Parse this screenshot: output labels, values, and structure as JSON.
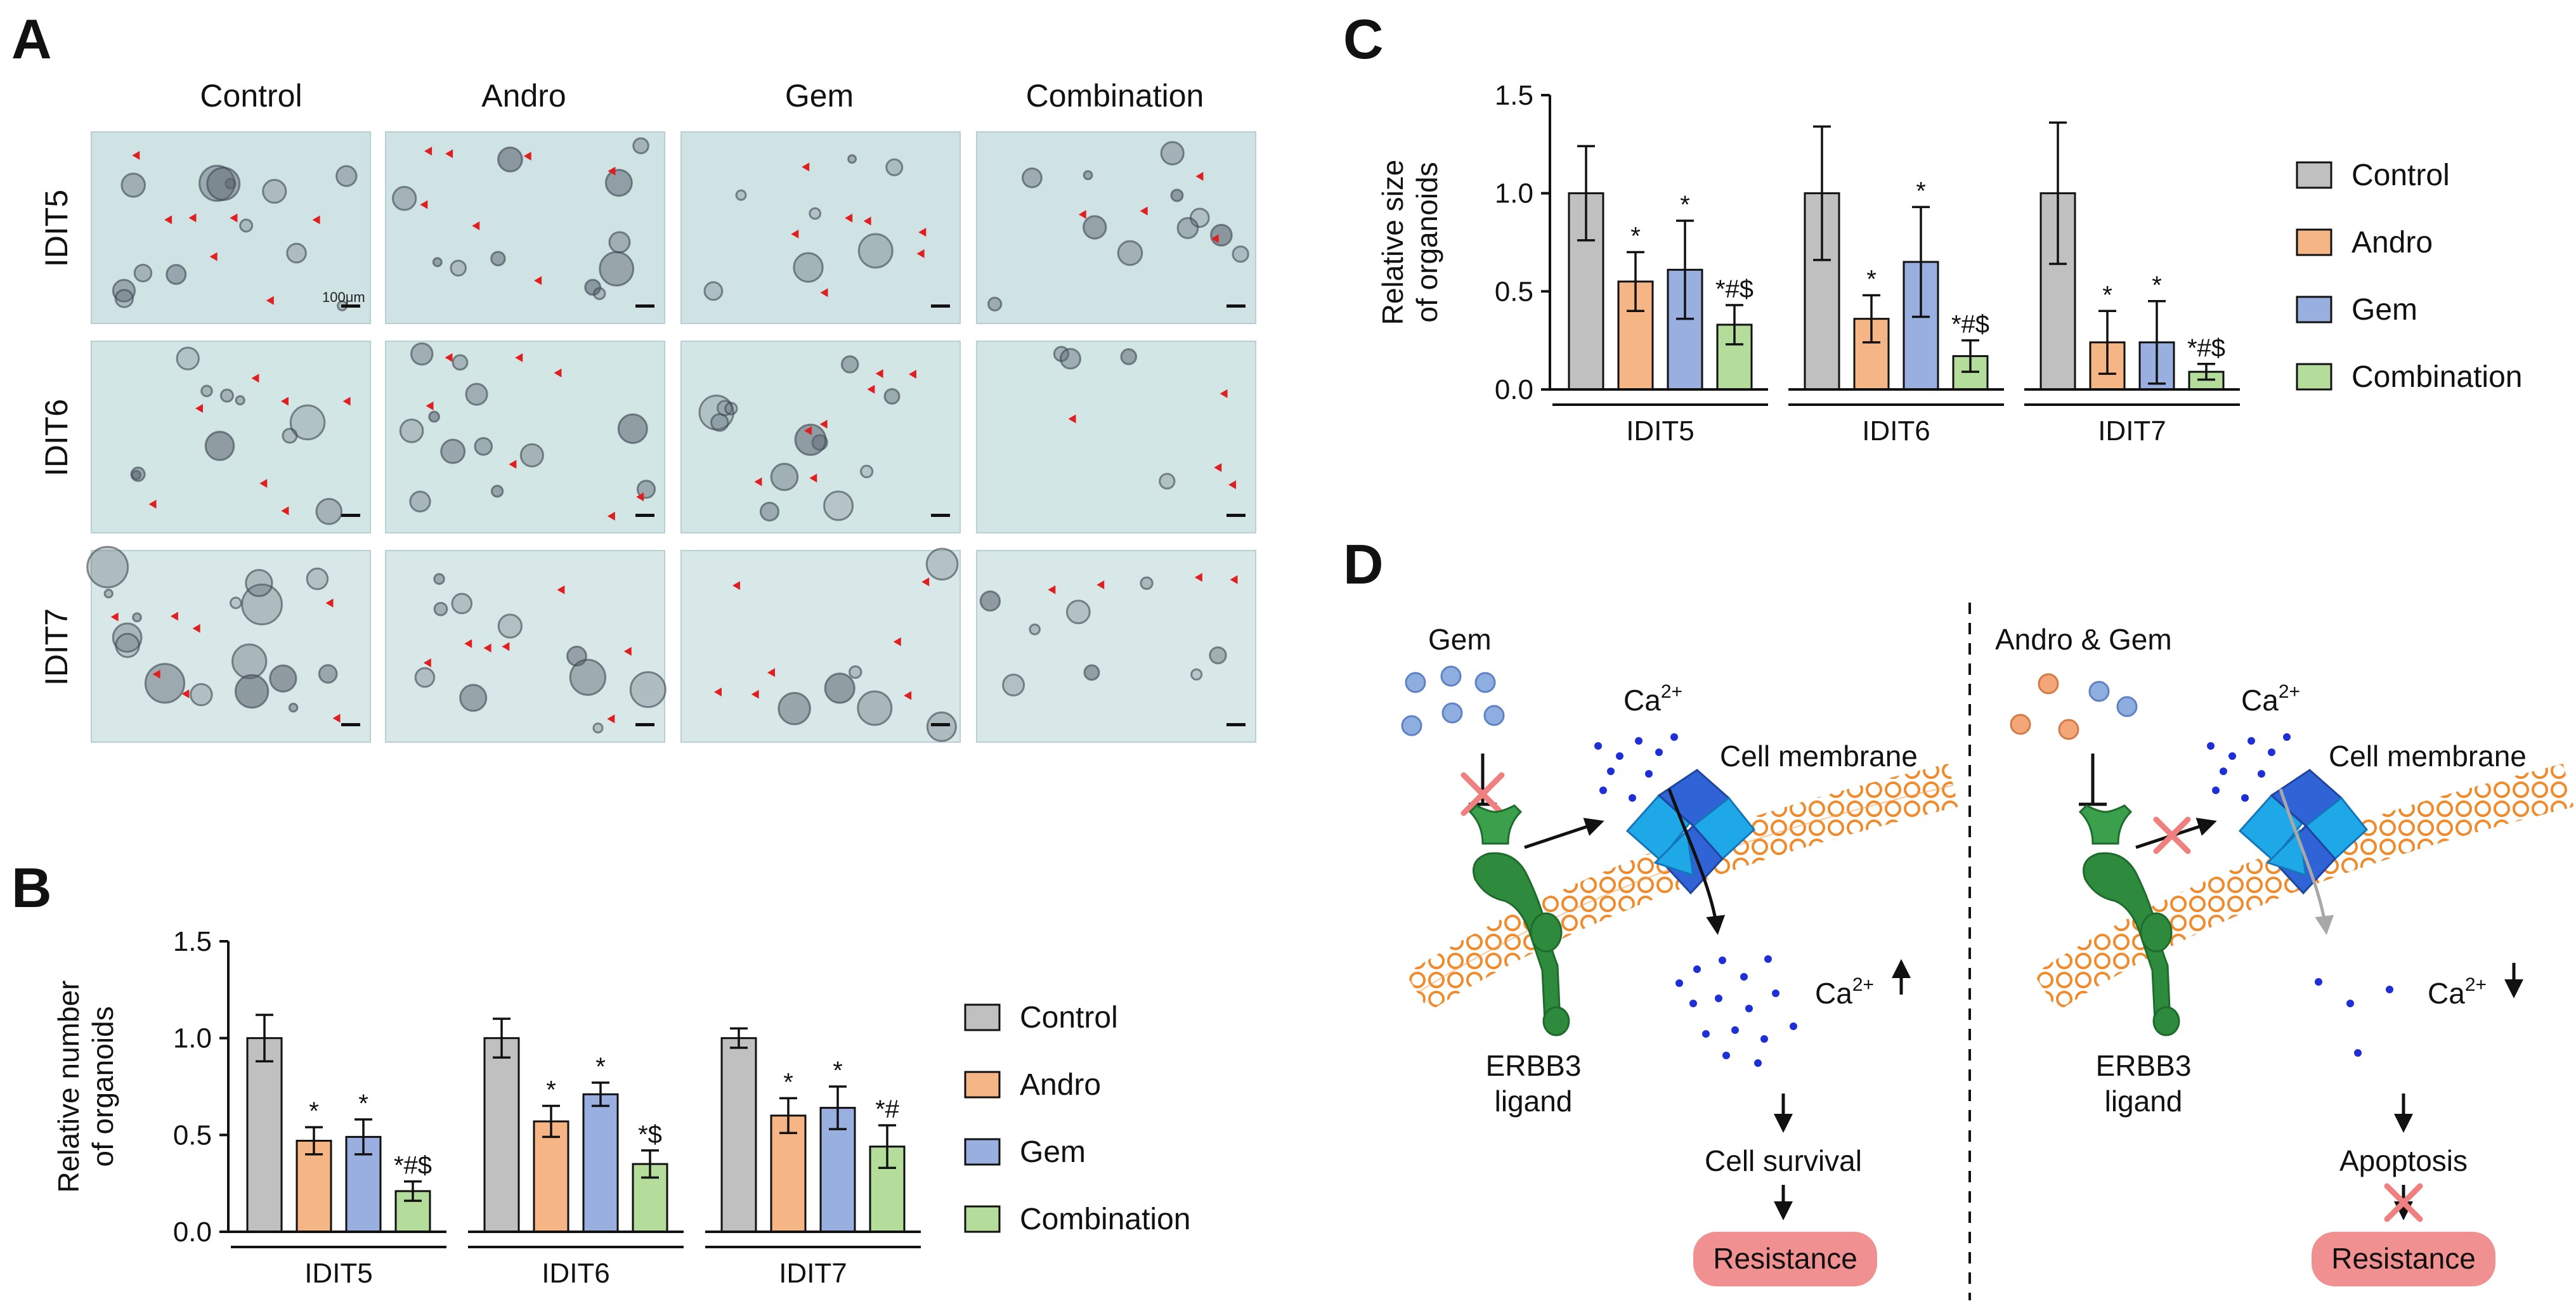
{
  "panel_letters": {
    "a": "A",
    "b": "B",
    "c": "C",
    "d": "D"
  },
  "panel_a": {
    "columns": [
      "Control",
      "Andro",
      "Gem",
      "Combination"
    ],
    "rows": [
      "IDIT5",
      "IDIT6",
      "IDIT7"
    ],
    "scale_label": "100μm"
  },
  "legend": [
    {
      "name": "Control",
      "color": "#c0c0c0"
    },
    {
      "name": "Andro",
      "color": "#f5b585"
    },
    {
      "name": "Gem",
      "color": "#98afe0"
    },
    {
      "name": "Combination",
      "color": "#b4dc9a"
    }
  ],
  "chart_data": [
    {
      "id": "B",
      "type": "bar",
      "ylabel": "Relative number of organoids",
      "ylabel_lines": [
        "Relative number",
        "of organoids"
      ],
      "ylim": [
        0,
        1.5
      ],
      "yticks": [
        "0.0",
        "0.5",
        "1.0",
        "1.5"
      ],
      "groups": [
        "IDIT5",
        "IDIT6",
        "IDIT7"
      ],
      "series": [
        {
          "name": "Control",
          "values": [
            1.0,
            1.0,
            1.0
          ],
          "errors": [
            0.12,
            0.1,
            0.05
          ],
          "marks": [
            "",
            "",
            ""
          ]
        },
        {
          "name": "Andro",
          "values": [
            0.47,
            0.57,
            0.6
          ],
          "errors": [
            0.07,
            0.08,
            0.09
          ],
          "marks": [
            "*",
            "*",
            "*"
          ]
        },
        {
          "name": "Gem",
          "values": [
            0.49,
            0.71,
            0.64
          ],
          "errors": [
            0.09,
            0.06,
            0.11
          ],
          "marks": [
            "*",
            "*",
            "*"
          ]
        },
        {
          "name": "Combination",
          "values": [
            0.21,
            0.35,
            0.44
          ],
          "errors": [
            0.05,
            0.07,
            0.11
          ],
          "marks": [
            "*#$",
            "*$",
            "*#"
          ]
        }
      ]
    },
    {
      "id": "C",
      "type": "bar",
      "ylabel": "Relative size of organoids",
      "ylabel_lines": [
        "Relative size",
        "of organoids"
      ],
      "ylim": [
        0,
        1.5
      ],
      "yticks": [
        "0.0",
        "0.5",
        "1.0",
        "1.5"
      ],
      "groups": [
        "IDIT5",
        "IDIT6",
        "IDIT7"
      ],
      "series": [
        {
          "name": "Control",
          "values": [
            1.0,
            1.0,
            1.0
          ],
          "errors": [
            0.24,
            0.34,
            0.36
          ],
          "marks": [
            "",
            "",
            ""
          ]
        },
        {
          "name": "Andro",
          "values": [
            0.55,
            0.36,
            0.24
          ],
          "errors": [
            0.15,
            0.12,
            0.16
          ],
          "marks": [
            "*",
            "*",
            "*"
          ]
        },
        {
          "name": "Gem",
          "values": [
            0.61,
            0.65,
            0.24
          ],
          "errors": [
            0.25,
            0.28,
            0.21
          ],
          "marks": [
            "*",
            "*",
            "*"
          ]
        },
        {
          "name": "Combination",
          "values": [
            0.33,
            0.17,
            0.09
          ],
          "errors": [
            0.1,
            0.08,
            0.04
          ],
          "marks": [
            "*#$",
            "*#$",
            "*#$"
          ]
        }
      ]
    }
  ],
  "panel_d": {
    "left": {
      "drug_label": "Gem",
      "ca_top": "Ca",
      "ca_sup": "2+",
      "membrane": "Cell membrane",
      "ca_mid": "Ca",
      "ca_mid_sup": "2+",
      "receptor_line1": "ERBB3",
      "receptor_line2": "ligand",
      "outcome": "Cell survival",
      "result": "Resistance"
    },
    "right": {
      "drug_label": "Andro & Gem",
      "ca_top": "Ca",
      "ca_sup": "2+",
      "membrane": "Cell membrane",
      "ca_mid": "Ca",
      "ca_mid_sup": "2+",
      "receptor_line1": "ERBB3",
      "receptor_line2": "ligand",
      "outcome": "Apoptosis",
      "result": "Resistance"
    }
  }
}
